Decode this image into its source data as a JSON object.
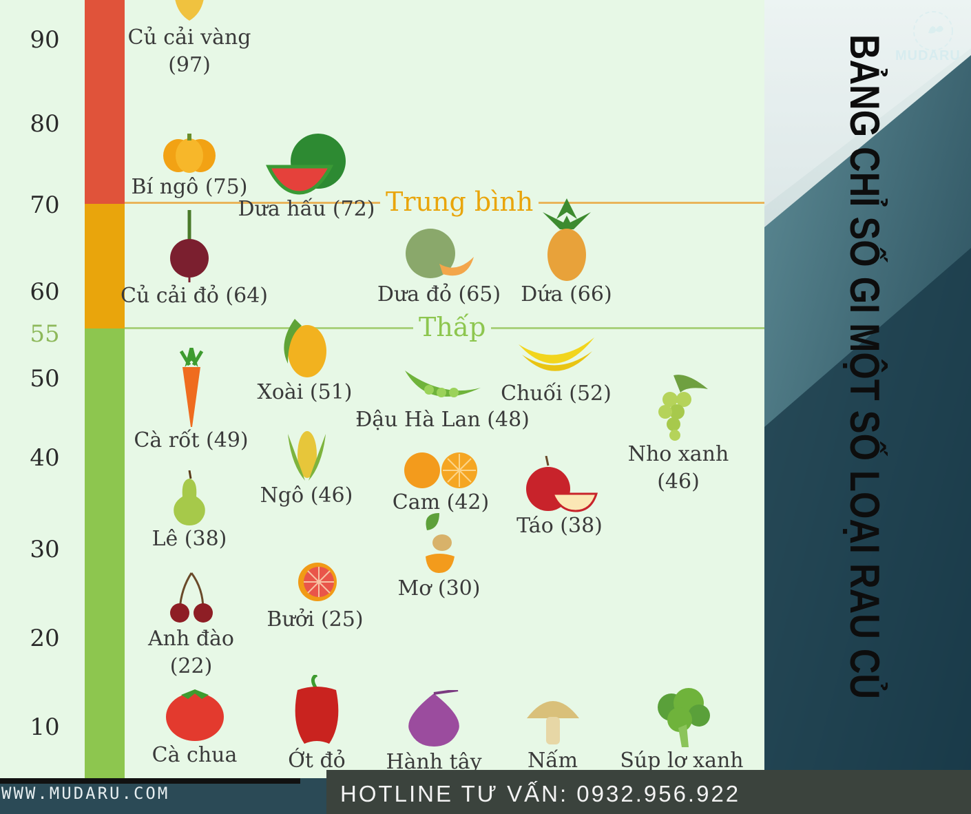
{
  "brand": {
    "name": "MUDARU",
    "website": "WWW.MUDARU.COM",
    "hotline": "HOTLINE TƯ VẤN: 0932.956.922"
  },
  "title": "BẢNG CHỈ SỐ GI MỘT SỐ LOẠI RAU CỦ",
  "colors": {
    "high": "#e0533a",
    "medium": "#e9a50c",
    "low": "#8dc64f",
    "chart_bg": "#e7f8e6"
  },
  "chart_data": {
    "type": "scatter",
    "yticks": [
      "10",
      "20",
      "30",
      "40",
      "50",
      "55",
      "60",
      "70",
      "80",
      "90"
    ],
    "thresholds": [
      {
        "value": 70,
        "label": "Trung bình",
        "color": "#e9a50c"
      },
      {
        "value": 55,
        "label": "Thấp",
        "color": "#8dc64f"
      }
    ],
    "bands": [
      {
        "from": 70,
        "to": 100,
        "color": "#e0533a"
      },
      {
        "from": 55,
        "to": 70,
        "color": "#e9a50c"
      },
      {
        "from": 0,
        "to": 55,
        "color": "#8dc64f"
      }
    ],
    "items": [
      {
        "label": "Củ cải vàng\n(97)",
        "gi": 97,
        "icon": "turnip-icon"
      },
      {
        "label": "Bí ngô (75)",
        "gi": 75,
        "icon": "pumpkin-icon"
      },
      {
        "label": "Dưa hấu (72)",
        "gi": 72,
        "icon": "watermelon-icon"
      },
      {
        "label": "Củ cải đỏ (64)",
        "gi": 64,
        "icon": "beet-icon"
      },
      {
        "label": "Dưa đỏ (65)",
        "gi": 65,
        "icon": "melon-icon"
      },
      {
        "label": "Dứa (66)",
        "gi": 66,
        "icon": "pineapple-icon"
      },
      {
        "label": "Xoài (51)",
        "gi": 51,
        "icon": "mango-icon"
      },
      {
        "label": "Chuối (52)",
        "gi": 52,
        "icon": "banana-icon"
      },
      {
        "label": "Cà rốt (49)",
        "gi": 49,
        "icon": "carrot-icon"
      },
      {
        "label": "Đậu Hà Lan (48)",
        "gi": 48,
        "icon": "peas-icon"
      },
      {
        "label": "Nho xanh\n(46)",
        "gi": 46,
        "icon": "grapes-icon"
      },
      {
        "label": "Ngô (46)",
        "gi": 46,
        "icon": "corn-icon"
      },
      {
        "label": "Cam (42)",
        "gi": 42,
        "icon": "orange-icon"
      },
      {
        "label": "Táo (38)",
        "gi": 38,
        "icon": "apple-icon"
      },
      {
        "label": "Lê (38)",
        "gi": 38,
        "icon": "pear-icon"
      },
      {
        "label": "Mơ (30)",
        "gi": 30,
        "icon": "apricot-icon"
      },
      {
        "label": "Bưởi (25)",
        "gi": 25,
        "icon": "grapefruit-icon"
      },
      {
        "label": "Anh đào\n(22)",
        "gi": 22,
        "icon": "cherry-icon"
      },
      {
        "label": "Cà chua",
        "gi": 10,
        "icon": "tomato-icon"
      },
      {
        "label": "Ớt đỏ",
        "gi": 10,
        "icon": "red-pepper-icon"
      },
      {
        "label": "Hành tây",
        "gi": 10,
        "icon": "onion-icon"
      },
      {
        "label": "Nấm",
        "gi": 10,
        "icon": "mushroom-icon"
      },
      {
        "label": "Súp lơ xanh",
        "gi": 10,
        "icon": "broccoli-icon"
      }
    ]
  }
}
